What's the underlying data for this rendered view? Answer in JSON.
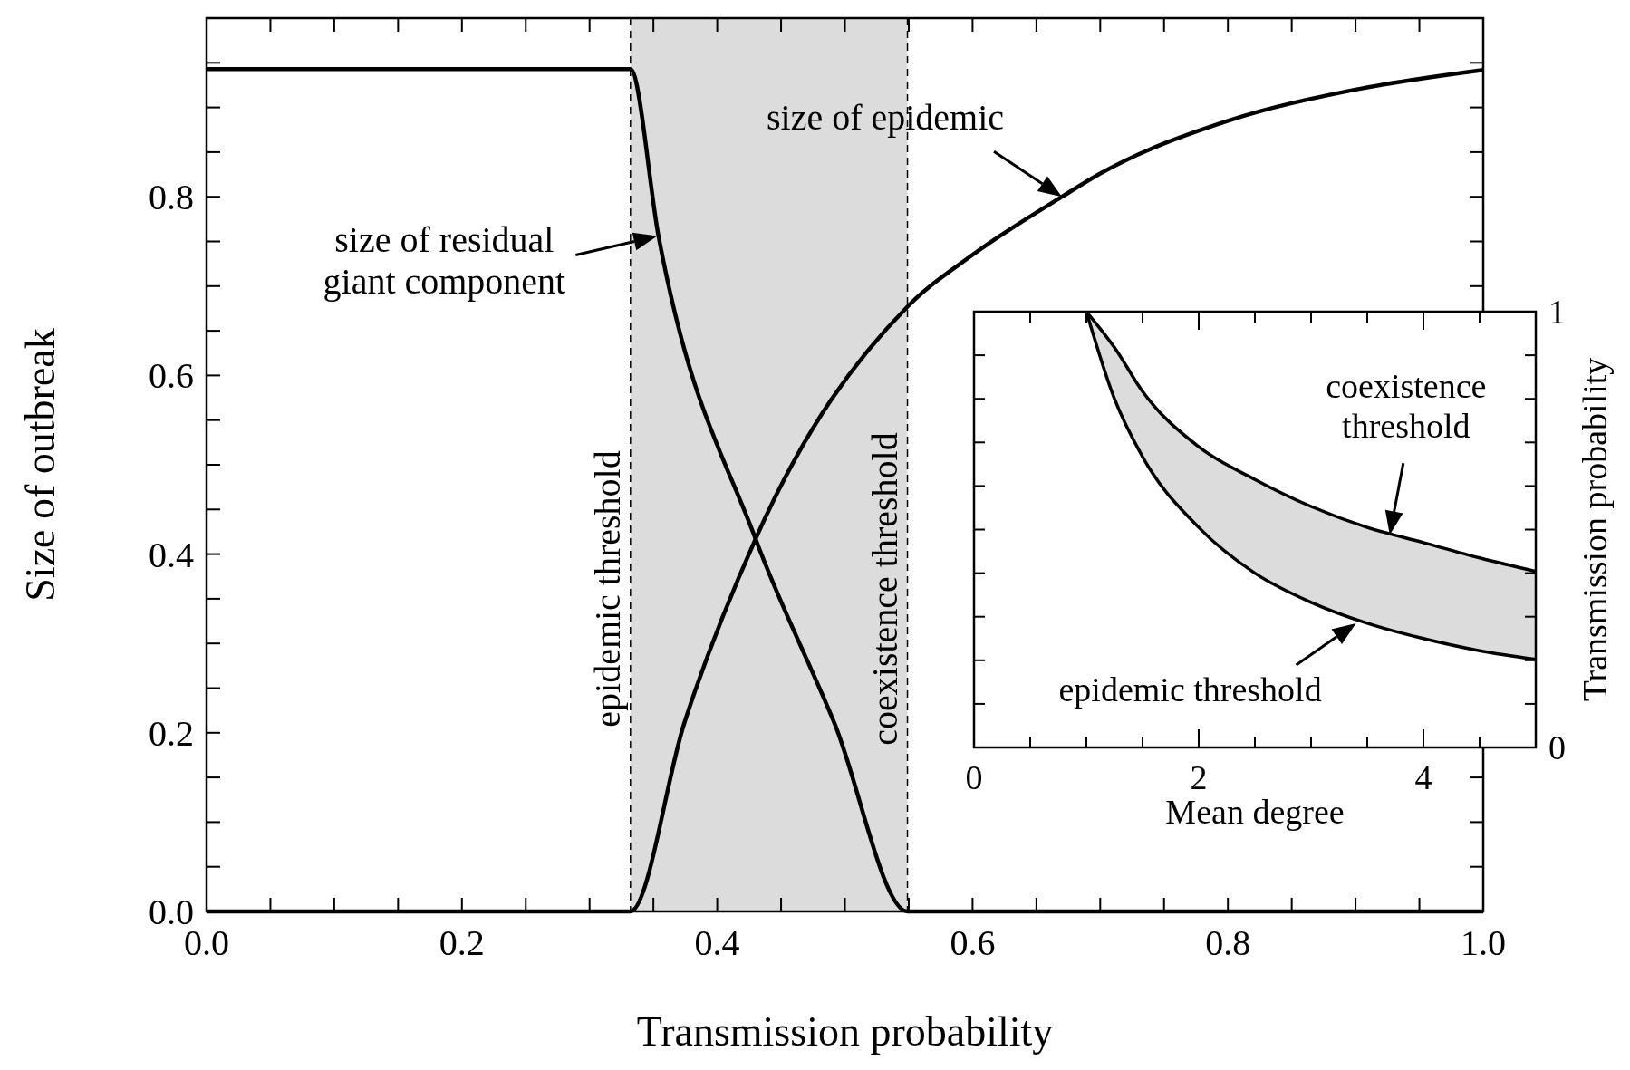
{
  "chart_data": [
    {
      "type": "line",
      "xlabel": "Transmission probability",
      "ylabel": "Size of outbreak",
      "xlim": [
        0,
        1
      ],
      "ylim": [
        0,
        1
      ],
      "xticks": [
        {
          "value": 0,
          "label": "0.0"
        },
        {
          "value": 0.05,
          "label": null
        },
        {
          "value": 0.1,
          "label": null
        },
        {
          "value": 0.15,
          "label": null
        },
        {
          "value": 0.2,
          "label": "0.2"
        },
        {
          "value": 0.25,
          "label": null
        },
        {
          "value": 0.3,
          "label": null
        },
        {
          "value": 0.35,
          "label": null
        },
        {
          "value": 0.4,
          "label": "0.4"
        },
        {
          "value": 0.45,
          "label": null
        },
        {
          "value": 0.5,
          "label": null
        },
        {
          "value": 0.55,
          "label": null
        },
        {
          "value": 0.6,
          "label": "0.6"
        },
        {
          "value": 0.65,
          "label": null
        },
        {
          "value": 0.7,
          "label": null
        },
        {
          "value": 0.75,
          "label": null
        },
        {
          "value": 0.8,
          "label": "0.8"
        },
        {
          "value": 0.85,
          "label": null
        },
        {
          "value": 0.9,
          "label": null
        },
        {
          "value": 0.95,
          "label": null
        },
        {
          "value": 1,
          "label": "1.0"
        }
      ],
      "yticks": [
        {
          "value": 0,
          "label": "0.0"
        },
        {
          "value": 0.05,
          "label": null
        },
        {
          "value": 0.1,
          "label": null
        },
        {
          "value": 0.15,
          "label": null
        },
        {
          "value": 0.2,
          "label": "0.2"
        },
        {
          "value": 0.25,
          "label": null
        },
        {
          "value": 0.3,
          "label": null
        },
        {
          "value": 0.35,
          "label": null
        },
        {
          "value": 0.4,
          "label": "0.4"
        },
        {
          "value": 0.45,
          "label": null
        },
        {
          "value": 0.5,
          "label": null
        },
        {
          "value": 0.55,
          "label": null
        },
        {
          "value": 0.6,
          "label": "0.6"
        },
        {
          "value": 0.65,
          "label": null
        },
        {
          "value": 0.7,
          "label": null
        },
        {
          "value": 0.75,
          "label": null
        },
        {
          "value": 0.8,
          "label": "0.8"
        },
        {
          "value": 0.85,
          "label": null
        },
        {
          "value": 0.9,
          "label": null
        },
        {
          "value": 0.95,
          "label": null
        },
        {
          "value": 1,
          "label": null
        }
      ],
      "series": [
        {
          "color": "#000000",
          "x": [
            0,
            0.332,
            0.354,
            0.43,
            0.492,
            0.549,
            0.7,
            1
          ],
          "values": [
            0.943,
            0.943,
            0.756,
            0.417,
            0.21,
            0,
            0,
            0
          ]
        },
        {
          "color": "#000000",
          "x": [
            0,
            0.332,
            0.374,
            0.43,
            0.549,
            0.6,
            0.67,
            0.7,
            0.8,
            0.9,
            1
          ],
          "values": [
            0,
            0,
            0.21,
            0.417,
            0.677,
            0.735,
            0.8,
            0.826,
            0.885,
            0.92,
            0.942
          ]
        }
      ],
      "bands": [
        {
          "axis": "x",
          "from": 0.332,
          "to": 0.549,
          "color": "#dcdcdc"
        }
      ],
      "ref_lines": [
        {
          "axis": "x",
          "value": 0.332,
          "label": "epidemic threshold",
          "line_style": "dashed"
        },
        {
          "axis": "x",
          "value": 0.549,
          "label": "coexistence threshold",
          "line_style": "dashed"
        }
      ],
      "annotations": [
        {
          "text": "size of epidemic",
          "x": 0.67,
          "y": 0.8
        },
        {
          "text": "size of residual\ngiant component",
          "x": 0.353,
          "y": 0.756
        }
      ],
      "grid": false,
      "marker": "none",
      "line_style": "solid"
    },
    {
      "type": "line",
      "xlabel": "Mean degree",
      "ylabel": "Transmission probability",
      "xlim": [
        0,
        5
      ],
      "ylim": [
        0,
        1
      ],
      "xticks": [
        0,
        {
          "value": 0.5,
          "label": null
        },
        {
          "value": 1,
          "label": null
        },
        {
          "value": 1.5,
          "label": null
        },
        2,
        {
          "value": 2.5,
          "label": null
        },
        {
          "value": 3,
          "label": null
        },
        {
          "value": 3.5,
          "label": null
        },
        4,
        {
          "value": 4.5,
          "label": null
        },
        {
          "value": 5,
          "label": null
        }
      ],
      "yticks": [
        0,
        {
          "value": 0.1,
          "label": null
        },
        {
          "value": 0.2,
          "label": null
        },
        {
          "value": 0.3,
          "label": null
        },
        {
          "value": 0.4,
          "label": null
        },
        {
          "value": 0.5,
          "label": null
        },
        {
          "value": 0.6,
          "label": null
        },
        {
          "value": 0.7,
          "label": null
        },
        {
          "value": 0.8,
          "label": null
        },
        {
          "value": 0.9,
          "label": null
        },
        1
      ],
      "series": [
        {
          "color": "#000000",
          "x": [
            1,
            1.25,
            1.5,
            2,
            2.5,
            3,
            3.5,
            4,
            4.5,
            5
          ],
          "values": [
            1,
            0.8,
            0.667,
            0.505,
            0.4,
            0.333,
            0.285,
            0.25,
            0.222,
            0.202
          ]
        },
        {
          "color": "#000000",
          "x": [
            1,
            1.25,
            1.5,
            2,
            2.5,
            3,
            3.5,
            4,
            4.5,
            5
          ],
          "values": [
            1,
            0.918,
            0.817,
            0.69,
            0.615,
            0.553,
            0.505,
            0.47,
            0.435,
            0.404
          ],
          "lower": [
            1,
            0.8,
            0.667,
            0.505,
            0.4,
            0.333,
            0.285,
            0.25,
            0.222,
            0.202
          ],
          "upper": [
            1,
            0.918,
            0.817,
            0.69,
            0.615,
            0.553,
            0.505,
            0.47,
            0.435,
            0.404
          ]
        }
      ],
      "annotations": [
        {
          "text": "coexistence\nthreshold",
          "x": 3.7,
          "y": 0.488
        },
        {
          "text": "epidemic threshold",
          "x": 3.4,
          "y": 0.285
        }
      ],
      "grid": false,
      "marker": "none",
      "line_style": "solid"
    }
  ]
}
